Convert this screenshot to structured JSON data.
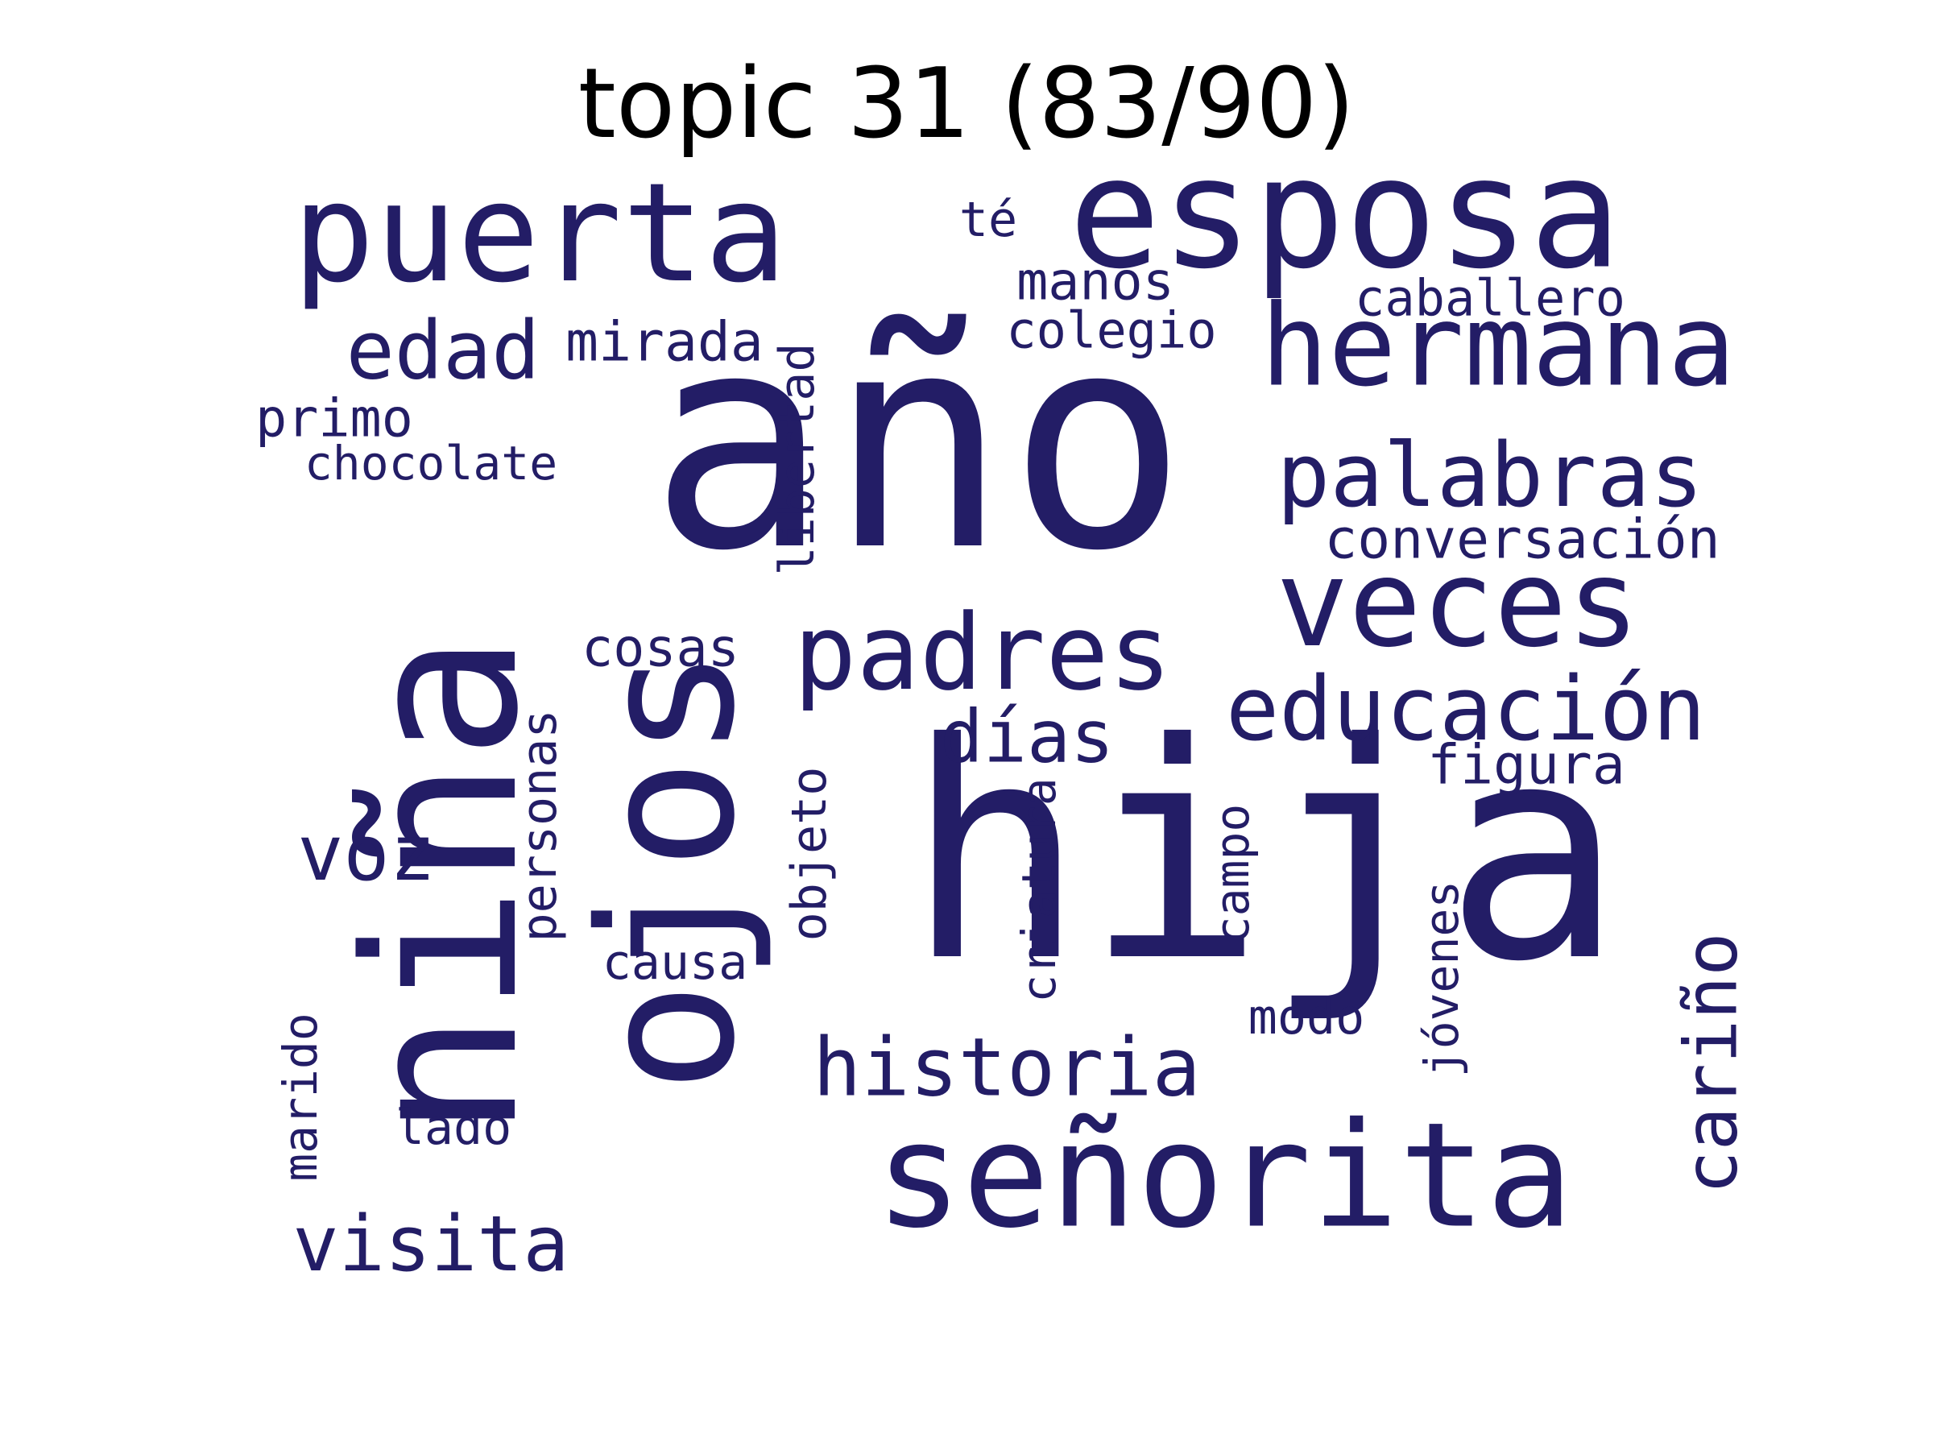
{
  "title": "topic 31 (83/90)",
  "color": "#231d66",
  "words": [
    {
      "text": "año"
    },
    {
      "text": "hija"
    },
    {
      "text": "niña"
    },
    {
      "text": "ojos"
    },
    {
      "text": "esposa"
    },
    {
      "text": "puerta"
    },
    {
      "text": "señorita"
    },
    {
      "text": "hermana"
    },
    {
      "text": "veces"
    },
    {
      "text": "padres"
    },
    {
      "text": "palabras"
    },
    {
      "text": "educación"
    },
    {
      "text": "historia"
    },
    {
      "text": "visita"
    },
    {
      "text": "edad"
    },
    {
      "text": "cariño"
    },
    {
      "text": "voz"
    },
    {
      "text": "días"
    },
    {
      "text": "conversación"
    },
    {
      "text": "mirada"
    },
    {
      "text": "caballero"
    },
    {
      "text": "colegio"
    },
    {
      "text": "manos"
    },
    {
      "text": "primo"
    },
    {
      "text": "chocolate"
    },
    {
      "text": "libertad"
    },
    {
      "text": "cosas"
    },
    {
      "text": "figura"
    },
    {
      "text": "personas"
    },
    {
      "text": "objeto"
    },
    {
      "text": "criatura"
    },
    {
      "text": "campo"
    },
    {
      "text": "jóvenes"
    },
    {
      "text": "causa"
    },
    {
      "text": "modo"
    },
    {
      "text": "marido"
    },
    {
      "text": "lado"
    },
    {
      "text": "té"
    }
  ]
}
